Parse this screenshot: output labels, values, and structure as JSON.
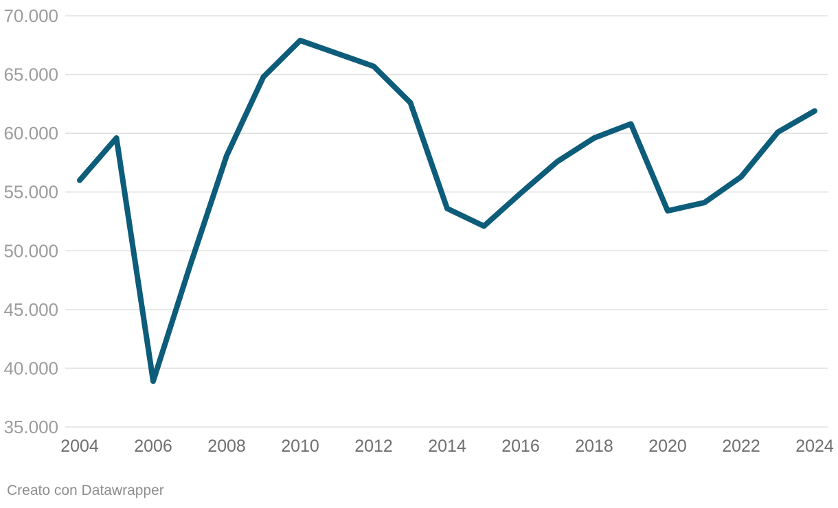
{
  "chart_data": {
    "type": "line",
    "title": "",
    "xlabel": "",
    "ylabel": "",
    "x": [
      2004,
      2005,
      2006,
      2007,
      2008,
      2009,
      2010,
      2011,
      2012,
      2013,
      2014,
      2015,
      2016,
      2017,
      2018,
      2019,
      2020,
      2021,
      2022,
      2023,
      2024
    ],
    "values": [
      56000,
      59600,
      38900,
      48700,
      58100,
      64800,
      67900,
      66800,
      65700,
      62600,
      53600,
      52100,
      54900,
      57600,
      59600,
      60800,
      53400,
      54100,
      56300,
      60100,
      61900
    ],
    "x_ticks": [
      2004,
      2006,
      2008,
      2010,
      2012,
      2014,
      2016,
      2018,
      2020,
      2022,
      2024
    ],
    "x_tick_labels": [
      "2004",
      "2006",
      "2008",
      "2010",
      "2012",
      "2014",
      "2016",
      "2018",
      "2020",
      "2022",
      "2024"
    ],
    "y_ticks": [
      70000,
      65000,
      60000,
      55000,
      50000,
      45000,
      40000,
      35000
    ],
    "y_tick_labels": [
      "70.000",
      "65.000",
      "60.000",
      "55.000",
      "50.000",
      "45.000",
      "40.000",
      "35.000"
    ],
    "ylim": [
      35000,
      70000
    ],
    "xlim": [
      2004,
      2024
    ],
    "grid": "horizontal",
    "legend": "none"
  },
  "colors": {
    "line": "#0d5c7a",
    "grid": "#e2e2e2",
    "y_tick_label": "#9c9c9c",
    "x_tick_label": "#6f6f6f",
    "footer_text": "#8e8e8e",
    "background": "#ffffff"
  },
  "footer": {
    "text": "Creato con Datawrapper"
  }
}
